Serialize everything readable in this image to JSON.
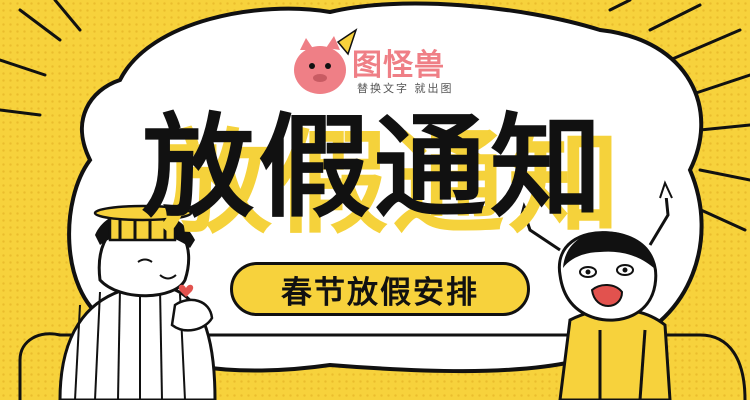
{
  "brand": {
    "logo_text": "图怪兽",
    "tagline": "替换文字 就出图"
  },
  "headline": "放假通知",
  "subtitle": "春节放假安排",
  "colors": {
    "background": "#f7d23c",
    "cloud": "#ffffff",
    "outline": "#111111",
    "logo_pink": "#ef7f86",
    "headline": "#111111"
  }
}
